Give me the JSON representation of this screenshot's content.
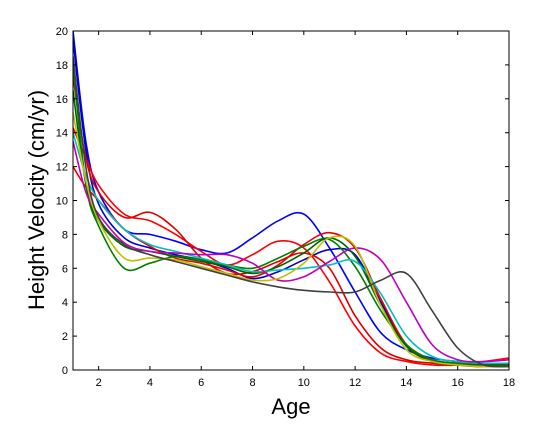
{
  "chart_data": {
    "type": "line",
    "title": "",
    "xlabel": "Age",
    "ylabel": "Height Velocity (cm/yr)",
    "xlim": [
      1,
      18
    ],
    "ylim": [
      0,
      20
    ],
    "xticks": [
      "2",
      "4",
      "6",
      "8",
      "10",
      "12",
      "14",
      "16",
      "18"
    ],
    "yticks": [
      "0",
      "2",
      "4",
      "6",
      "8",
      "10",
      "12",
      "14",
      "16",
      "18",
      "20"
    ],
    "grid": false,
    "legend": "none",
    "series": [
      {
        "color": "#0000ff",
        "x": [
          1,
          1.5,
          2,
          3,
          4,
          5,
          6,
          7,
          8,
          9,
          10,
          11,
          12,
          13,
          14,
          15,
          16,
          17,
          18
        ],
        "y": [
          20,
          13.5,
          10.5,
          8.3,
          8.0,
          7.6,
          7.1,
          6.9,
          7.8,
          8.8,
          9.2,
          7.2,
          4.6,
          2.2,
          1.2,
          0.7,
          0.5,
          0.4,
          0.3
        ]
      },
      {
        "color": "#0000cc",
        "x": [
          1,
          1.5,
          2,
          3,
          4,
          5,
          6,
          7,
          8,
          9,
          10,
          11,
          12,
          13,
          14,
          15,
          16,
          17,
          18
        ],
        "y": [
          19.5,
          13.0,
          9.8,
          7.8,
          7.2,
          6.8,
          6.5,
          6.0,
          5.4,
          5.8,
          6.5,
          7.1,
          6.8,
          4.0,
          1.5,
          0.6,
          0.4,
          0.3,
          0.2
        ]
      },
      {
        "color": "#ff0000",
        "x": [
          1,
          1.5,
          2,
          3,
          4,
          5,
          6,
          7,
          8,
          9,
          10,
          11,
          12,
          13,
          14,
          15,
          16,
          17,
          18
        ],
        "y": [
          14.3,
          12.5,
          10.9,
          9.2,
          8.8,
          8.0,
          7.0,
          6.2,
          6.8,
          7.6,
          7.2,
          5.2,
          2.6,
          1.0,
          0.5,
          0.3,
          0.3,
          0.5,
          0.7
        ]
      },
      {
        "color": "#ee0000",
        "x": [
          1,
          1.5,
          2,
          3,
          4,
          5,
          6,
          7,
          8,
          9,
          10,
          11,
          12,
          13,
          14,
          15,
          16,
          17,
          18
        ],
        "y": [
          12.0,
          10.8,
          10.0,
          8.3,
          7.3,
          6.6,
          6.3,
          5.9,
          5.5,
          6.2,
          7.4,
          8.1,
          7.2,
          4.2,
          1.5,
          0.6,
          0.3,
          0.2,
          0.3
        ]
      },
      {
        "color": "#dd0000",
        "x": [
          1,
          1.5,
          2,
          3,
          4,
          5,
          6,
          7,
          8,
          9,
          10,
          11,
          12,
          13,
          14,
          15,
          16,
          17,
          18
        ],
        "y": [
          17.3,
          12.5,
          10.5,
          9.0,
          9.3,
          8.3,
          6.6,
          5.7,
          5.8,
          6.4,
          6.9,
          6.0,
          3.2,
          1.3,
          0.6,
          0.4,
          0.3,
          0.3,
          0.3
        ]
      },
      {
        "color": "#008000",
        "x": [
          1,
          1.5,
          2,
          3,
          4,
          5,
          6,
          7,
          8,
          9,
          10,
          11,
          12,
          13,
          14,
          15,
          16,
          17,
          18
        ],
        "y": [
          18.0,
          11.0,
          8.5,
          6.0,
          6.3,
          6.7,
          6.5,
          6.2,
          6.0,
          6.6,
          7.3,
          7.7,
          6.1,
          3.5,
          1.5,
          0.6,
          0.4,
          0.3,
          0.3
        ]
      },
      {
        "color": "#006400",
        "x": [
          1,
          1.5,
          2,
          3,
          4,
          5,
          6,
          7,
          8,
          9,
          10,
          11,
          12,
          13,
          14,
          15,
          16,
          17,
          18
        ],
        "y": [
          16.5,
          11.0,
          8.8,
          7.3,
          7.0,
          6.7,
          6.4,
          6.1,
          5.7,
          6.1,
          6.9,
          7.8,
          6.7,
          3.8,
          1.4,
          0.5,
          0.3,
          0.3,
          0.3
        ]
      },
      {
        "color": "#00bfbf",
        "x": [
          1,
          1.5,
          2,
          3,
          4,
          5,
          6,
          7,
          8,
          9,
          10,
          11,
          12,
          13,
          14,
          15,
          16,
          17,
          18
        ],
        "y": [
          14.0,
          11.5,
          10.0,
          8.3,
          7.4,
          7.0,
          6.6,
          6.2,
          5.8,
          5.9,
          6.0,
          6.2,
          6.4,
          4.5,
          2.0,
          0.8,
          0.5,
          0.4,
          0.4
        ]
      },
      {
        "color": "#bf00bf",
        "x": [
          1,
          1.5,
          2,
          3,
          4,
          5,
          6,
          7,
          8,
          9,
          10,
          11,
          12,
          13,
          14,
          15,
          16,
          17,
          18
        ],
        "y": [
          13.5,
          10.5,
          9.2,
          7.5,
          7.0,
          6.9,
          6.8,
          6.8,
          6.3,
          5.3,
          5.5,
          6.4,
          7.2,
          6.5,
          4.0,
          1.5,
          0.6,
          0.5,
          0.6
        ]
      },
      {
        "color": "#bfbf00",
        "x": [
          1,
          1.5,
          2,
          3,
          4,
          5,
          6,
          7,
          8,
          9,
          10,
          11,
          12,
          13,
          14,
          15,
          16,
          17,
          18
        ],
        "y": [
          15.2,
          11.2,
          8.8,
          6.6,
          6.6,
          6.5,
          6.1,
          5.7,
          5.3,
          5.4,
          6.3,
          7.8,
          7.3,
          3.8,
          1.2,
          0.5,
          0.3,
          0.2,
          0.2
        ]
      },
      {
        "color": "#404040",
        "x": [
          1,
          1.5,
          2,
          3,
          4,
          5,
          6,
          7,
          8,
          9,
          10,
          11,
          12,
          13,
          14,
          15,
          16,
          17,
          18
        ],
        "y": [
          18.5,
          12.0,
          9.0,
          7.4,
          6.8,
          6.4,
          6.0,
          5.6,
          5.2,
          4.9,
          4.7,
          4.6,
          4.6,
          5.3,
          5.7,
          3.5,
          1.3,
          0.3,
          0.2
        ]
      }
    ]
  }
}
